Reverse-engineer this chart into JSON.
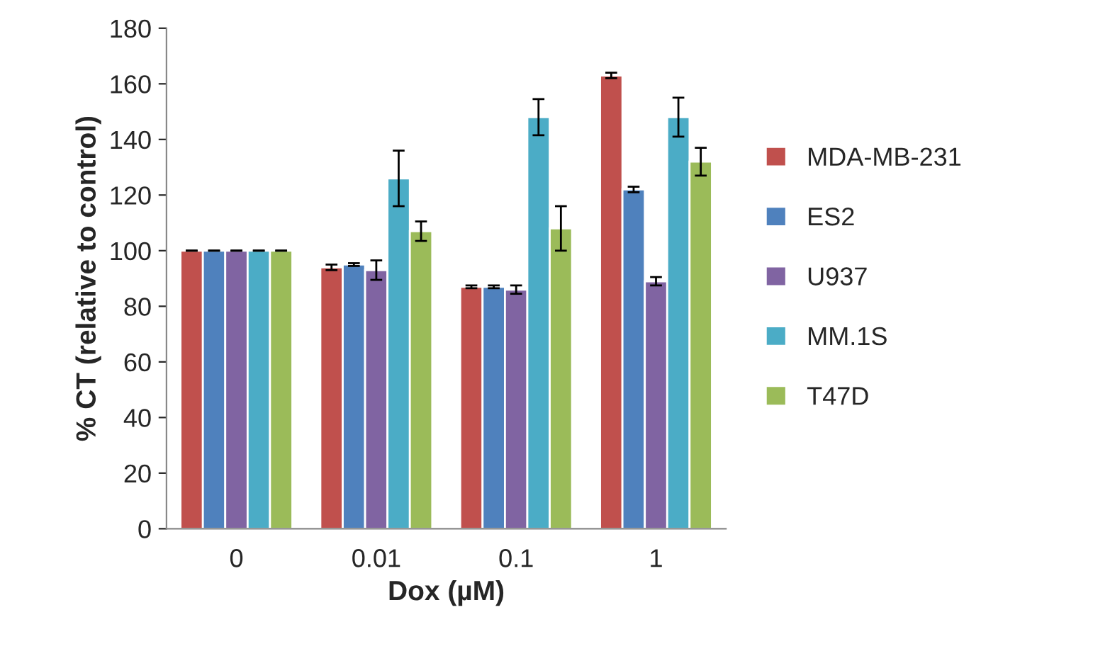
{
  "chart_data": {
    "type": "bar",
    "xlabel": "Dox (µM)",
    "ylabel": "% CT (relative to control)",
    "categories": [
      "0",
      "0.01",
      "0.1",
      "1"
    ],
    "series": [
      {
        "name": "MDA-MB-231",
        "color": "#c0504d",
        "values": [
          100,
          94,
          87,
          163
        ],
        "errors": [
          0,
          1,
          0.5,
          1
        ]
      },
      {
        "name": "ES2",
        "color": "#4f81bd",
        "values": [
          100,
          95,
          87,
          122
        ],
        "errors": [
          0,
          0.5,
          0.5,
          1
        ]
      },
      {
        "name": "U937",
        "color": "#8064a2",
        "values": [
          100,
          93,
          86,
          89
        ],
        "errors": [
          0,
          3.5,
          1.5,
          1.5
        ]
      },
      {
        "name": "MM.1S",
        "color": "#4bacc6",
        "values": [
          100,
          126,
          148,
          148
        ],
        "errors": [
          0,
          10,
          6.5,
          7
        ]
      },
      {
        "name": "T47D",
        "color": "#9bbb59",
        "values": [
          100,
          107,
          108,
          132
        ],
        "errors": [
          0,
          3.5,
          8,
          5
        ]
      }
    ],
    "ylim": [
      0,
      180
    ],
    "yticks": [
      0,
      20,
      40,
      60,
      80,
      100,
      120,
      140,
      160,
      180
    ],
    "grid": false,
    "legend": "right"
  }
}
